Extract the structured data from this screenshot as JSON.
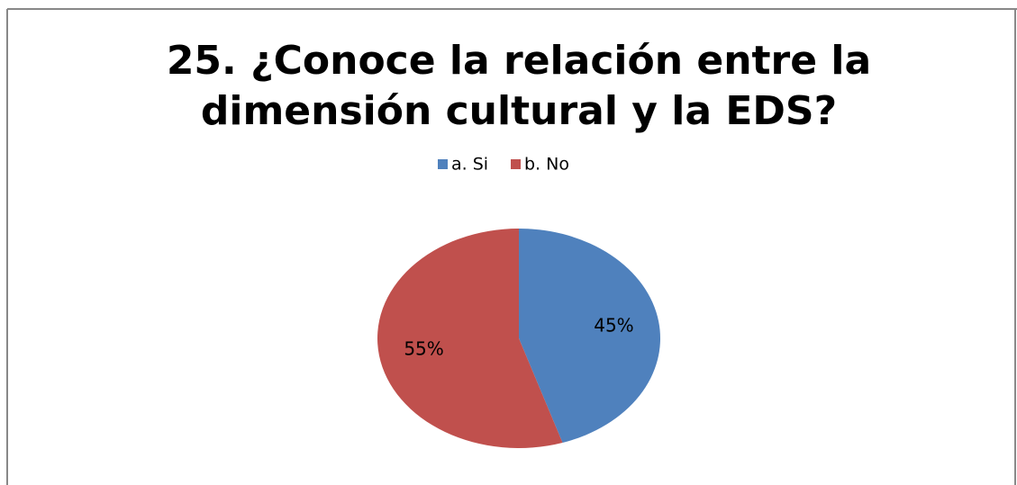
{
  "chart_data": {
    "type": "pie",
    "title": "25. ¿Conoce la relación entre la\ndimensión cultural y la EDS?",
    "categories": [
      "a. Si",
      "b. No"
    ],
    "values": [
      45,
      55
    ],
    "value_labels": [
      "45%",
      "55%"
    ],
    "colors": [
      "#4f81bd",
      "#c0504d"
    ],
    "legend": "top"
  }
}
